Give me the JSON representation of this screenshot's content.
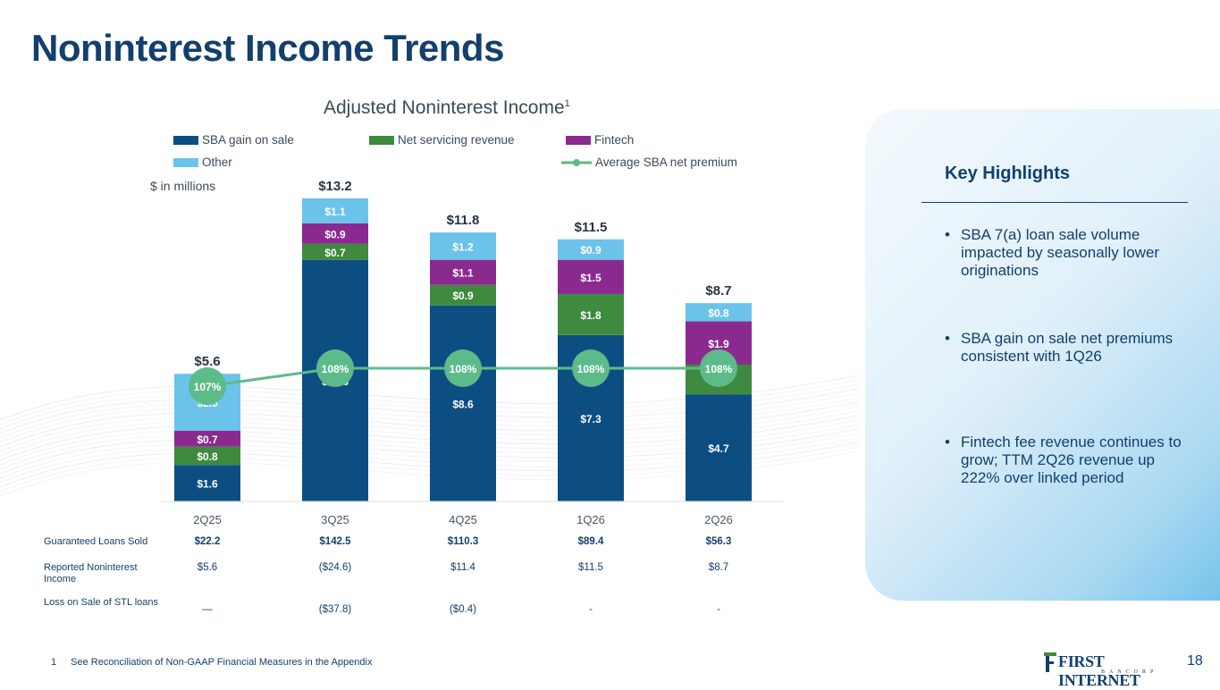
{
  "title": "Noninterest Income Trends",
  "chart_title": "Adjusted Noninterest Income",
  "chart_title_sup": "1",
  "units_label": "$ in millions",
  "chart_data": {
    "type": "bar",
    "stacked": true,
    "categories": [
      "2Q25",
      "3Q25",
      "4Q25",
      "1Q26",
      "2Q26"
    ],
    "series": [
      {
        "name": "SBA gain on sale",
        "color": "#0d4e82",
        "values": [
          1.6,
          10.6,
          8.6,
          7.3,
          4.7
        ],
        "labels": [
          "$1.6",
          "$10.6",
          "$8.6",
          "$7.3",
          "$4.7"
        ]
      },
      {
        "name": "Net servicing revenue",
        "color": "#3e8a3f",
        "values": [
          0.8,
          0.7,
          0.9,
          1.8,
          1.3
        ],
        "labels": [
          "$0.8",
          "$0.7",
          "$0.9",
          "$1.8",
          "$1.3"
        ]
      },
      {
        "name": "Fintech",
        "color": "#8a2a8f",
        "values": [
          0.7,
          0.9,
          1.1,
          1.5,
          1.9
        ],
        "labels": [
          "$0.7",
          "$0.9",
          "$1.1",
          "$1.5",
          "$1.9"
        ]
      },
      {
        "name": "Other",
        "color": "#6cc3ea",
        "values": [
          2.5,
          1.1,
          1.2,
          0.9,
          0.8
        ],
        "labels": [
          "$2.5",
          "$1.1",
          "$1.2",
          "$0.9",
          "$0.8"
        ]
      }
    ],
    "totals": [
      "$5.6",
      "$13.2",
      "$11.8",
      "$11.5",
      "$8.7"
    ],
    "line_series": {
      "name": "Average SBA net premium",
      "color": "#5dbb8a",
      "values": [
        107,
        108,
        108,
        108,
        108
      ],
      "labels": [
        "107%",
        "108%",
        "108%",
        "108%",
        "108%"
      ]
    },
    "legend_placement": "top",
    "grid": false
  },
  "table": {
    "rows": [
      {
        "label": "Guaranteed Loans Sold",
        "bold": true,
        "values": [
          "$22.2",
          "$142.5",
          "$110.3",
          "$89.4",
          "$56.3"
        ]
      },
      {
        "label": "Reported Noninterest Income",
        "bold": false,
        "values": [
          "$5.6",
          "($24.6)",
          "$11.4",
          "$11.5",
          "$8.7"
        ]
      },
      {
        "label": "Loss on Sale of STL loans",
        "bold": false,
        "values": [
          "—",
          "($37.8)",
          "($0.4)",
          "-",
          "-"
        ]
      }
    ]
  },
  "footnote": {
    "num": "1",
    "text": "See Reconciliation of Non-GAAP Financial Measures in the Appendix"
  },
  "highlights": {
    "title": "Key Highlights",
    "bullets": [
      "SBA 7(a) loan sale volume impacted by seasonally lower originations",
      "SBA gain on sale net premiums consistent with 1Q26",
      "Fintech fee revenue continues to grow; TTM 2Q26 revenue up 222% over linked period"
    ]
  },
  "logo": {
    "text": "FIRST INTERNET",
    "sub": "BANCORP"
  },
  "page_number": "18"
}
